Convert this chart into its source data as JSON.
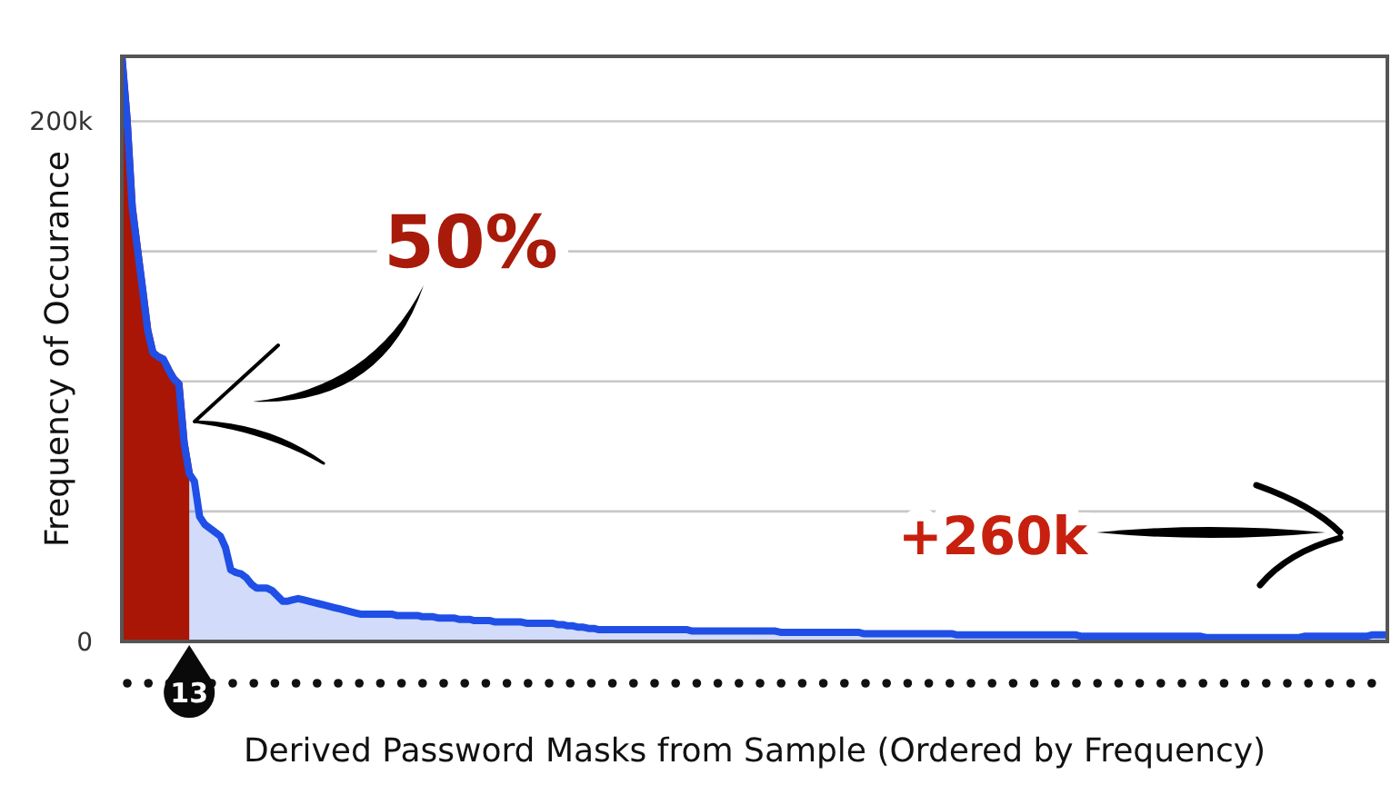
{
  "chart_data": {
    "type": "area",
    "xlabel": "Derived Password Masks from Sample (Ordered by Frequency)",
    "ylabel": "Frequency of Occurance",
    "annotations": [
      "50%",
      "+260k"
    ],
    "categories": [
      null,
      null,
      null,
      null,
      null,
      null,
      null,
      null,
      null,
      null,
      null,
      null,
      null,
      "13",
      null,
      null,
      null,
      null,
      null,
      null,
      null,
      null,
      null,
      null,
      null,
      null,
      null,
      null,
      null,
      null,
      null,
      null,
      null,
      null,
      null,
      null,
      null,
      null,
      null,
      null,
      null,
      null,
      null,
      null,
      null,
      null,
      null,
      null,
      null,
      null,
      null,
      null,
      null,
      null,
      null,
      null,
      null,
      null,
      null,
      null,
      null,
      null,
      null,
      null,
      null,
      null,
      null,
      null,
      null,
      null,
      null,
      null,
      null,
      null,
      null,
      null,
      null,
      null,
      null,
      null,
      null,
      null,
      null,
      null,
      null,
      null,
      null,
      null,
      null,
      null,
      null,
      null,
      null,
      null,
      null,
      null,
      null,
      null,
      null,
      null,
      null,
      null,
      null,
      null,
      null,
      null,
      null,
      null,
      null,
      null,
      null,
      null,
      null,
      null,
      null,
      null,
      null,
      null,
      null,
      null,
      null,
      null,
      null,
      null,
      null,
      null,
      null,
      null,
      null,
      null,
      null,
      null,
      null,
      null,
      null,
      null,
      null,
      null,
      null,
      null,
      null,
      null,
      null,
      null,
      null,
      null,
      null,
      null,
      null,
      null,
      null,
      null,
      null,
      null,
      null,
      null,
      null,
      null,
      null,
      null,
      null,
      null,
      null,
      null,
      null,
      null,
      null,
      null,
      null,
      null,
      null,
      null,
      null,
      null,
      null,
      null,
      null,
      null,
      null,
      null,
      null,
      null,
      null,
      null,
      null,
      null,
      null,
      null,
      null,
      null,
      null,
      null,
      null,
      null,
      null,
      null,
      null,
      null,
      null,
      null,
      null,
      null,
      null,
      null,
      null,
      null,
      null,
      null,
      null,
      null,
      null,
      null,
      null,
      null,
      null,
      null,
      null,
      null,
      null,
      null,
      null,
      null,
      null,
      null,
      null,
      null,
      null,
      null,
      null,
      null,
      null,
      null,
      null,
      null,
      null,
      null,
      null,
      null,
      null,
      null,
      null,
      null,
      null,
      null,
      null
    ],
    "series": [
      {
        "color": "#a91606",
        "values": [
          225000,
          201000,
          167000,
          151000,
          135500,
          119500,
          111000,
          109500,
          108500,
          104500,
          101000,
          99000,
          76500,
          64500,
          null,
          null,
          null,
          null,
          null,
          null,
          null,
          null,
          null,
          null,
          null,
          null,
          null,
          null,
          null,
          null,
          null,
          null,
          null,
          null,
          null,
          null,
          null,
          null,
          null,
          null,
          null,
          null,
          null,
          null,
          null,
          null,
          null,
          null,
          null,
          null,
          null,
          null,
          null,
          null,
          null,
          null,
          null,
          null,
          null,
          null,
          null,
          null,
          null,
          null,
          null,
          null,
          null,
          null,
          null,
          null,
          null,
          null,
          null,
          null,
          null,
          null,
          null,
          null,
          null,
          null,
          null,
          null,
          null,
          null,
          null,
          null,
          null,
          null,
          null,
          null,
          null,
          null,
          null,
          null,
          null,
          null,
          null,
          null,
          null,
          null,
          null,
          null,
          null,
          null,
          null,
          null,
          null,
          null,
          null,
          null,
          null,
          null,
          null,
          null,
          null,
          null,
          null,
          null,
          null,
          null,
          null,
          null,
          null,
          null,
          null,
          null,
          null,
          null,
          null,
          null,
          null,
          null,
          null,
          null,
          null,
          null,
          null,
          null,
          null,
          null,
          null,
          null,
          null,
          null,
          null,
          null,
          null,
          null,
          null,
          null,
          null,
          null,
          null,
          null,
          null,
          null,
          null,
          null,
          null,
          null,
          null,
          null,
          null,
          null,
          null,
          null,
          null,
          null,
          null,
          null,
          null,
          null,
          null,
          null,
          null,
          null,
          null,
          null,
          null,
          null,
          null,
          null,
          null,
          null,
          null,
          null,
          null,
          null,
          null,
          null,
          null,
          null,
          null,
          null,
          null,
          null,
          null,
          null,
          null,
          null,
          null,
          null,
          null,
          null,
          null,
          null,
          null,
          null,
          null,
          null,
          null,
          null,
          null,
          null,
          null,
          null,
          null,
          null,
          null,
          null,
          null,
          null,
          null,
          null,
          null,
          null,
          null,
          null,
          null,
          null,
          null,
          null,
          null,
          null,
          null,
          null,
          null,
          null,
          null,
          null,
          null,
          null,
          null,
          null,
          null
        ]
      },
      {
        "color": "#1f4fe6",
        "values": [
          225000,
          201000,
          167000,
          151000,
          135500,
          119500,
          111000,
          109500,
          108500,
          104500,
          101000,
          99000,
          76500,
          64500,
          61500,
          48000,
          45000,
          43500,
          42000,
          40500,
          36000,
          27500,
          26500,
          26000,
          24500,
          22000,
          20500,
          20500,
          20500,
          19500,
          17500,
          15500,
          15500,
          16000,
          16500,
          16000,
          15500,
          15000,
          14500,
          14000,
          13500,
          13000,
          12500,
          12000,
          11500,
          11000,
          10500,
          10500,
          10500,
          10500,
          10500,
          10500,
          10500,
          10000,
          10000,
          10000,
          10000,
          10000,
          9500,
          9500,
          9500,
          9000,
          9000,
          9000,
          9000,
          8500,
          8500,
          8500,
          8000,
          8000,
          8000,
          8000,
          7500,
          7500,
          7500,
          7500,
          7500,
          7500,
          7000,
          7000,
          7000,
          7000,
          7000,
          7000,
          6500,
          6500,
          6000,
          6000,
          5500,
          5500,
          5000,
          5000,
          4500,
          4500,
          4500,
          4500,
          4500,
          4500,
          4500,
          4500,
          4500,
          4500,
          4500,
          4500,
          4500,
          4500,
          4500,
          4500,
          4500,
          4500,
          4000,
          4000,
          4000,
          4000,
          4000,
          4000,
          4000,
          4000,
          4000,
          4000,
          4000,
          4000,
          4000,
          4000,
          4000,
          4000,
          4000,
          3500,
          3500,
          3500,
          3500,
          3500,
          3500,
          3500,
          3500,
          3500,
          3500,
          3500,
          3500,
          3500,
          3500,
          3500,
          3500,
          3000,
          3000,
          3000,
          3000,
          3000,
          3000,
          3000,
          3000,
          3000,
          3000,
          3000,
          3000,
          3000,
          3000,
          3000,
          3000,
          3000,
          3000,
          2500,
          2500,
          2500,
          2500,
          2500,
          2500,
          2500,
          2500,
          2500,
          2500,
          2500,
          2500,
          2500,
          2500,
          2500,
          2500,
          2500,
          2500,
          2500,
          2500,
          2500,
          2500,
          2500,
          2500,
          2000,
          2000,
          2000,
          2000,
          2000,
          2000,
          2000,
          2000,
          2000,
          2000,
          2000,
          2000,
          2000,
          2000,
          2000,
          2000,
          2000,
          2000,
          2000,
          2000,
          2000,
          2000,
          2000,
          2000,
          1500,
          1500,
          1500,
          1500,
          1500,
          1500,
          1500,
          1500,
          1500,
          1500,
          1500,
          1500,
          1500,
          1500,
          1500,
          1500,
          1500,
          1500,
          1500,
          2000,
          2000,
          2000,
          2000,
          2000,
          2000,
          2000,
          2000,
          2000,
          2000,
          2000,
          2000,
          2000,
          2500,
          2500,
          2500,
          2500
        ]
      }
    ],
    "ylim": [
      0,
      225000
    ],
    "yticks": [
      0,
      {
        "value": 50000,
        "label": null
      },
      {
        "value": 100000,
        "label": null
      },
      {
        "value": 150000,
        "label": null
      },
      {
        "value": 200000,
        "label": "200k"
      }
    ],
    "grid": "y"
  }
}
